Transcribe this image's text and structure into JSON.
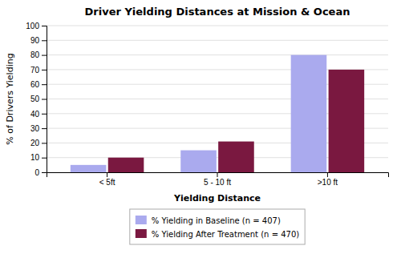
{
  "chart_data": {
    "type": "bar",
    "title": "Driver Yielding Distances at Mission & Ocean",
    "categories": [
      "< 5ft",
      "5 - 10 ft",
      ">10 ft"
    ],
    "series": [
      {
        "name": "% Yielding in Baseline (n = 407)",
        "color": "#aaaaee",
        "values": [
          5,
          15,
          80
        ]
      },
      {
        "name": "% Yielding After Treatment (n = 470)",
        "color": "#7a1840",
        "values": [
          10,
          21,
          70
        ]
      }
    ],
    "xlabel": "Yielding Distance",
    "ylabel": "% of Drivers Yielding",
    "ylim": [
      0,
      100
    ],
    "yticks": [
      0,
      10,
      20,
      30,
      40,
      50,
      60,
      70,
      80,
      90,
      100
    ],
    "grid": true,
    "legend": "bottom"
  }
}
